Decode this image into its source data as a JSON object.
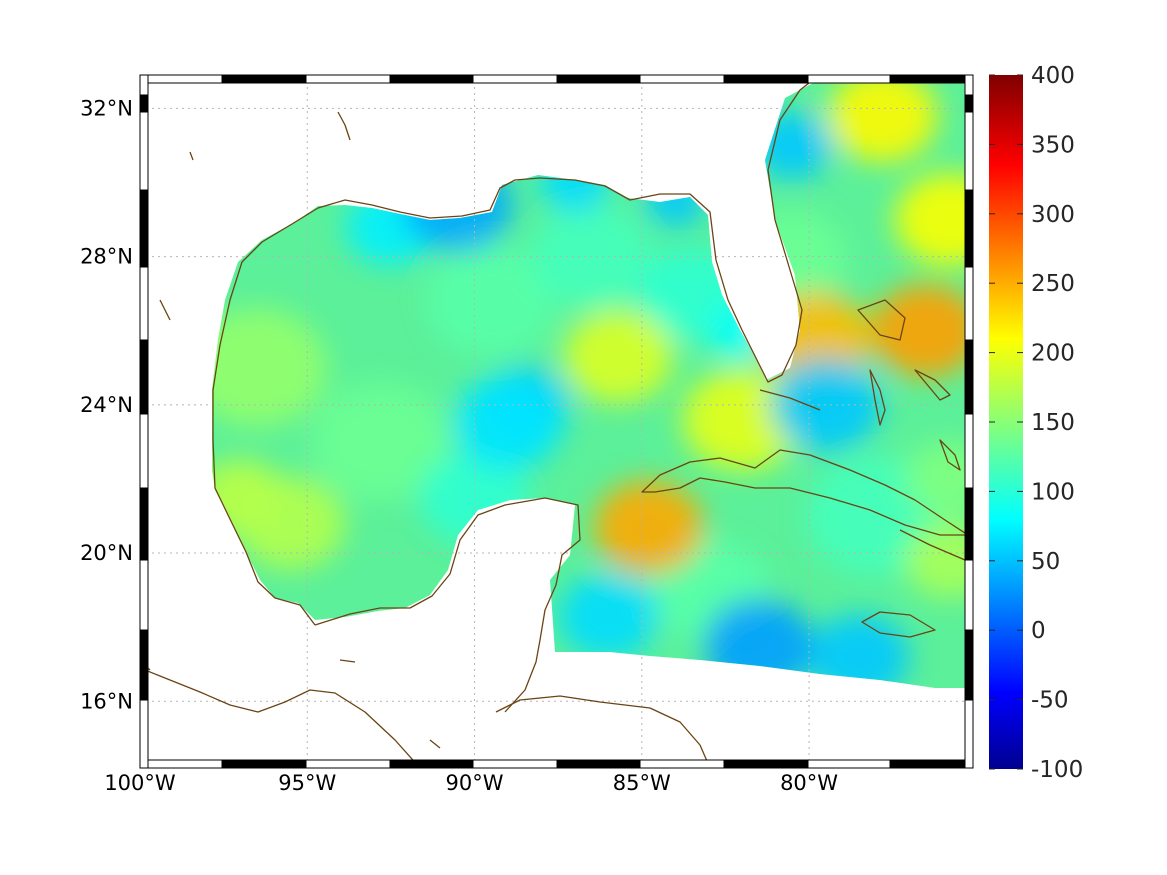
{
  "chart_data": {
    "type": "heatmap",
    "subtype": "geographic-map",
    "x_tick_labels": [
      "100°W",
      "95°W",
      "90°W",
      "85°W",
      "80°W"
    ],
    "x_ticks": [
      -100,
      -95,
      -90,
      -85,
      -80
    ],
    "y_tick_labels": [
      "32°N",
      "28°N",
      "24°N",
      "20°N",
      "16°N"
    ],
    "y_ticks": [
      32,
      28,
      24,
      20,
      16
    ],
    "lon_range": [
      -100,
      -75.1
    ],
    "lat_range": [
      14.2,
      32.9
    ],
    "grid": true,
    "colorbar": {
      "location": "right",
      "range": [
        -100,
        400
      ],
      "tick_labels": [
        "400",
        "350",
        "300",
        "250",
        "200",
        "150",
        "100",
        "50",
        "0",
        "-50",
        "-100"
      ],
      "ticks": [
        400,
        350,
        300,
        250,
        200,
        150,
        100,
        50,
        0,
        -50,
        -100
      ],
      "colormap": "jet"
    },
    "value_hotspots": [
      {
        "lon": -95.5,
        "lat": 20.8,
        "value": 175
      },
      {
        "lon": -84.8,
        "lat": 20.7,
        "value": 255
      },
      {
        "lon": -76.5,
        "lat": 26.0,
        "value": 260
      },
      {
        "lon": -79.8,
        "lat": 25.8,
        "value": 245
      },
      {
        "lon": -77.8,
        "lat": 31.8,
        "value": 215
      },
      {
        "lon": -85.7,
        "lat": 25.3,
        "value": 195
      },
      {
        "lon": -89.0,
        "lat": 23.5,
        "value": 75
      },
      {
        "lon": -90.5,
        "lat": 29.4,
        "value": 45
      },
      {
        "lon": -79.5,
        "lat": 24.0,
        "value": 60
      },
      {
        "lon": -81.5,
        "lat": 17.5,
        "value": 40
      }
    ],
    "colors": {
      "coastline": "#6b4414",
      "background_field": "#5cf09a",
      "no_data": "#ffffff"
    }
  }
}
